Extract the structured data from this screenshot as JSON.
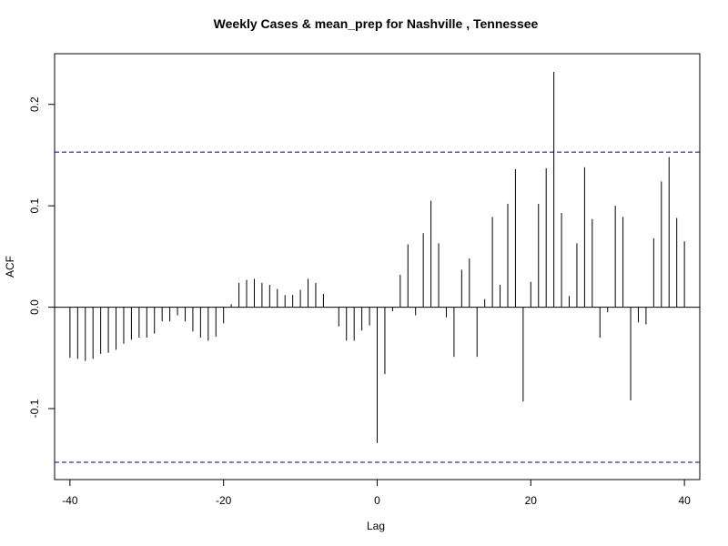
{
  "chart_data": {
    "type": "bar",
    "title": "Weekly Cases & mean_prep for Nashville , Tennessee",
    "xlabel": "Lag",
    "ylabel": "ACF",
    "xlim": [
      -42,
      42
    ],
    "ylim": [
      -0.17,
      0.25
    ],
    "x_ticks": [
      -40,
      -20,
      0,
      20,
      40
    ],
    "y_ticks": [
      -0.1,
      0.0,
      0.1,
      0.2
    ],
    "y_tick_labels": [
      "-0.1",
      "0.0",
      "0.1",
      "0.2"
    ],
    "confidence_bound": 0.153,
    "colors": {
      "bars": "#000000",
      "ci": "#00008b",
      "frame": "#000000"
    },
    "x": [
      -40,
      -39,
      -38,
      -37,
      -36,
      -35,
      -34,
      -33,
      -32,
      -31,
      -30,
      -29,
      -28,
      -27,
      -26,
      -25,
      -24,
      -23,
      -22,
      -21,
      -20,
      -19,
      -18,
      -17,
      -16,
      -15,
      -14,
      -13,
      -12,
      -11,
      -10,
      -9,
      -8,
      -7,
      -6,
      -5,
      -4,
      -3,
      -2,
      -1,
      0,
      1,
      2,
      3,
      4,
      5,
      6,
      7,
      8,
      9,
      10,
      11,
      12,
      13,
      14,
      15,
      16,
      17,
      18,
      19,
      20,
      21,
      22,
      23,
      24,
      25,
      26,
      27,
      28,
      29,
      30,
      31,
      32,
      33,
      34,
      35,
      36,
      37,
      38,
      39,
      40
    ],
    "values": [
      -0.05,
      -0.051,
      -0.053,
      -0.051,
      -0.046,
      -0.045,
      -0.042,
      -0.036,
      -0.032,
      -0.03,
      -0.03,
      -0.026,
      -0.014,
      -0.014,
      -0.008,
      -0.014,
      -0.024,
      -0.03,
      -0.033,
      -0.029,
      -0.016,
      0.003,
      0.024,
      0.027,
      0.028,
      0.024,
      0.022,
      0.018,
      0.012,
      0.012,
      0.017,
      0.028,
      0.024,
      0.013,
      0.0,
      -0.019,
      -0.033,
      -0.033,
      -0.023,
      -0.018,
      -0.134,
      -0.066,
      -0.004,
      0.032,
      0.062,
      -0.008,
      0.073,
      0.105,
      0.063,
      -0.01,
      -0.049,
      0.037,
      0.048,
      -0.049,
      0.008,
      0.089,
      0.022,
      0.102,
      0.136,
      -0.093,
      0.025,
      0.102,
      0.137,
      0.232,
      0.093,
      0.011,
      0.063,
      0.138,
      0.087,
      -0.03,
      -0.005,
      0.1,
      0.089,
      -0.092,
      -0.015,
      -0.017,
      0.068,
      0.124,
      0.148,
      0.088,
      0.065
    ]
  }
}
